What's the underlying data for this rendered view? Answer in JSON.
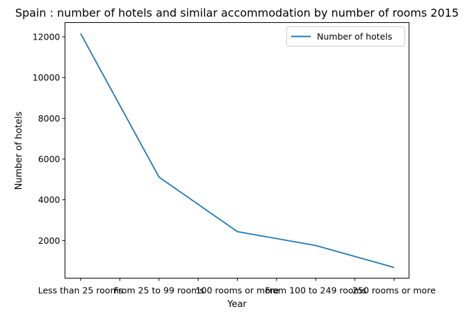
{
  "chart_data": {
    "type": "line",
    "title": "Spain : number of hotels and similar accommodation by number of rooms 2015",
    "xlabel": "Year",
    "ylabel": "Number of hotels",
    "categories": [
      "Less than 25 rooms",
      "From 25 to 99 rooms",
      "100 rooms or more",
      "From 100 to 249 rooms",
      "250 rooms or more"
    ],
    "series": [
      {
        "name": "Number of hotels",
        "values": [
          12162,
          5115,
          2437,
          1757,
          680
        ],
        "color": "#1f77b4"
      }
    ],
    "ylim": [
      154,
      12700
    ],
    "yticks": [
      2000,
      4000,
      6000,
      8000,
      10000,
      12000
    ],
    "grid": false,
    "legend": "top-right"
  }
}
